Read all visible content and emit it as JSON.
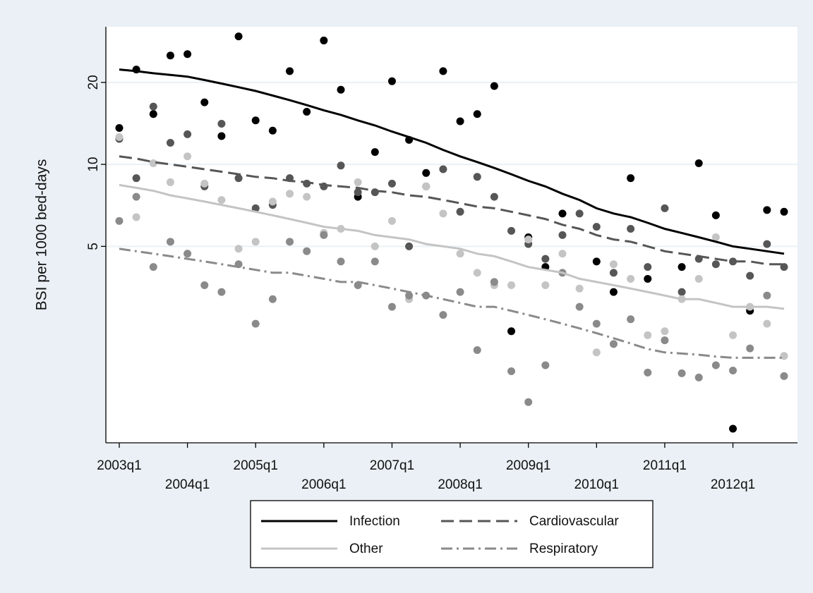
{
  "chart_data": {
    "type": "scatter",
    "ylabel": "BSI per 1000 bed-days",
    "log_scale": true,
    "grid": true,
    "legend": "bottom",
    "ylim": [
      0.95,
      32
    ],
    "yticks": [
      5,
      10,
      20
    ],
    "categories": [
      "2003q1",
      null,
      null,
      null,
      "2004q1",
      null,
      null,
      null,
      "2005q1",
      null,
      null,
      null,
      "2006q1",
      null,
      null,
      null,
      "2007q1",
      null,
      null,
      null,
      "2008q1",
      null,
      null,
      null,
      "2009q1",
      null,
      null,
      null,
      "2010q1",
      null,
      null,
      null,
      "2011q1",
      null,
      null,
      null,
      "2012q1",
      null,
      null,
      null
    ],
    "series": [
      {
        "name": "Infection",
        "color": "#000000",
        "dash": "solid",
        "values": [
          13.6,
          22.3,
          15.3,
          25.1,
          25.4,
          16.9,
          12.7,
          29.5,
          14.5,
          13.3,
          22.0,
          15.6,
          28.5,
          18.8,
          7.6,
          11.1,
          20.2,
          12.3,
          9.3,
          22.0,
          14.4,
          15.3,
          19.4,
          2.44,
          5.4,
          4.2,
          6.6,
          null,
          4.4,
          3.4,
          8.9,
          3.8,
          null,
          4.2,
          10.1,
          6.5,
          1.07,
          2.9,
          6.8,
          6.7
        ],
        "fit": [
          22.3,
          22.0,
          21.6,
          21.3,
          21.0,
          20.4,
          19.8,
          19.2,
          18.6,
          17.9,
          17.2,
          16.5,
          15.8,
          15.2,
          14.5,
          13.9,
          13.2,
          12.6,
          12.0,
          11.3,
          10.7,
          10.2,
          9.7,
          9.2,
          8.7,
          8.3,
          7.8,
          7.4,
          6.9,
          6.6,
          6.4,
          6.1,
          5.8,
          5.6,
          5.4,
          5.2,
          5.0,
          4.9,
          4.8,
          4.7
        ]
      },
      {
        "name": "Cardiovascular",
        "color": "#565656",
        "dash": "dash",
        "values": [
          12.4,
          8.9,
          16.3,
          12.0,
          12.9,
          8.3,
          14.1,
          8.9,
          6.9,
          7.1,
          8.9,
          8.5,
          8.3,
          9.9,
          7.9,
          7.9,
          8.5,
          5.0,
          8.3,
          9.6,
          6.7,
          9.0,
          7.6,
          5.7,
          5.1,
          4.5,
          5.5,
          6.6,
          5.9,
          4.0,
          5.8,
          4.2,
          6.9,
          3.4,
          4.5,
          4.3,
          4.4,
          3.9,
          5.1,
          4.2
        ],
        "fit": [
          10.7,
          10.5,
          10.2,
          10.0,
          9.8,
          9.6,
          9.4,
          9.2,
          9.0,
          8.9,
          8.7,
          8.6,
          8.4,
          8.3,
          8.2,
          8.0,
          7.9,
          7.7,
          7.6,
          7.4,
          7.2,
          7.0,
          6.9,
          6.7,
          6.5,
          6.3,
          6.0,
          5.8,
          5.5,
          5.3,
          5.2,
          5.0,
          4.8,
          4.7,
          4.6,
          4.5,
          4.4,
          4.4,
          4.3,
          4.3
        ]
      },
      {
        "name": "Other",
        "color": "#c4c4c4",
        "dash": "solid",
        "values": [
          12.6,
          6.4,
          10.1,
          8.6,
          10.7,
          8.5,
          7.4,
          4.9,
          5.2,
          7.3,
          7.8,
          7.6,
          5.6,
          5.8,
          8.6,
          5.0,
          6.2,
          3.2,
          8.3,
          6.6,
          4.7,
          4.0,
          3.6,
          3.6,
          5.3,
          3.6,
          4.7,
          3.5,
          2.04,
          4.3,
          3.8,
          2.36,
          2.44,
          3.2,
          3.8,
          5.4,
          2.36,
          3.0,
          2.6,
          1.98
        ],
        "fit": [
          8.4,
          8.2,
          8.0,
          7.7,
          7.5,
          7.3,
          7.1,
          6.9,
          6.7,
          6.5,
          6.3,
          6.1,
          5.9,
          5.8,
          5.7,
          5.5,
          5.4,
          5.3,
          5.1,
          5.0,
          4.9,
          4.7,
          4.6,
          4.4,
          4.2,
          4.1,
          4.0,
          3.8,
          3.7,
          3.6,
          3.5,
          3.4,
          3.3,
          3.2,
          3.2,
          3.1,
          3.0,
          3.0,
          3.0,
          2.95
        ]
      },
      {
        "name": "Respiratory",
        "color": "#8a8a8a",
        "dash": "dash-dot",
        "values": [
          6.2,
          7.6,
          4.2,
          5.2,
          4.7,
          3.6,
          3.4,
          4.3,
          2.6,
          3.2,
          5.2,
          4.8,
          5.5,
          4.4,
          3.6,
          4.4,
          3.0,
          3.3,
          3.3,
          2.8,
          3.4,
          2.08,
          3.7,
          1.74,
          1.34,
          1.83,
          4.0,
          3.0,
          2.6,
          2.19,
          2.7,
          1.72,
          2.26,
          1.71,
          1.65,
          1.83,
          1.75,
          2.11,
          3.3,
          1.67
        ],
        "fit": [
          4.9,
          4.8,
          4.7,
          4.6,
          4.5,
          4.4,
          4.3,
          4.2,
          4.1,
          4.0,
          4.0,
          3.9,
          3.8,
          3.7,
          3.7,
          3.6,
          3.5,
          3.4,
          3.3,
          3.2,
          3.1,
          3.0,
          3.0,
          2.9,
          2.8,
          2.7,
          2.6,
          2.5,
          2.4,
          2.3,
          2.2,
          2.1,
          2.04,
          2.02,
          2.0,
          1.97,
          1.95,
          1.95,
          1.95,
          1.95
        ]
      }
    ]
  }
}
